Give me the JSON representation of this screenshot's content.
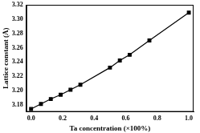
{
  "chart_data": {
    "type": "line",
    "x_label": "Ta concentration (×100%)",
    "y_label": "Lattice constant (Å)",
    "x": [
      0,
      0.0625,
      0.125,
      0.1875,
      0.25,
      0.3125,
      0.5,
      0.5625,
      0.625,
      0.75,
      1.0
    ],
    "values": [
      3.174,
      3.181,
      3.188,
      3.194,
      3.201,
      3.208,
      3.232,
      3.242,
      3.25,
      3.27,
      3.309
    ],
    "color": "#000000",
    "marker": "square",
    "line_style": "solid",
    "xlim": [
      -0.03,
      1.03
    ],
    "xticks": [
      {
        "value": 0,
        "label": "0.0"
      },
      {
        "value": 0.2,
        "label": "0.2"
      },
      {
        "value": 0.4,
        "label": "0.4"
      },
      {
        "value": 0.6,
        "label": "0.6"
      },
      {
        "value": 0.8,
        "label": "0.8"
      },
      {
        "value": 1.0,
        "label": "1.0"
      }
    ],
    "ylim": [
      3.17,
      3.32
    ],
    "yticks": [
      {
        "value": 3.18,
        "label": "3.18"
      },
      {
        "value": 3.2,
        "label": "3.20"
      },
      {
        "value": 3.22,
        "label": "3.22"
      },
      {
        "value": 3.24,
        "label": "3.24"
      },
      {
        "value": 3.26,
        "label": "3.26"
      },
      {
        "value": 3.28,
        "label": "3.28"
      },
      {
        "value": 3.3,
        "label": "3.30"
      },
      {
        "value": 3.32,
        "label": "3.32"
      }
    ],
    "grid": false
  }
}
